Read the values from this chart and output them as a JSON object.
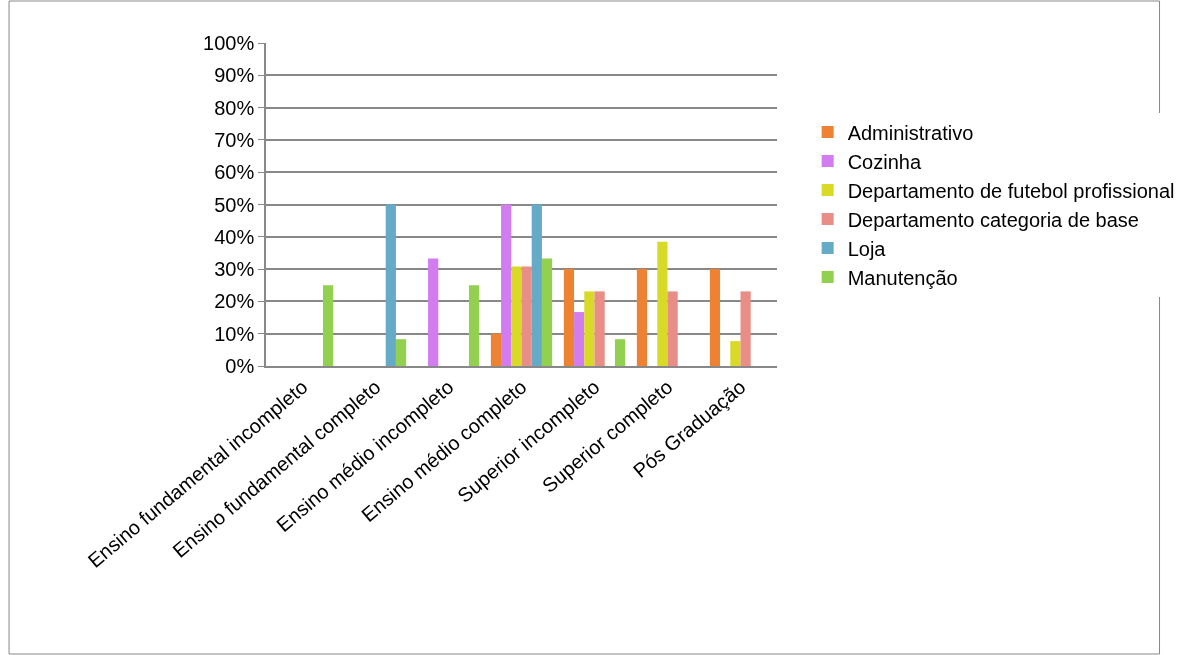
{
  "chart_data": {
    "type": "bar",
    "categories": [
      "Ensino fundamental incompleto",
      "Ensino fundamental completo",
      "Ensino médio incompleto",
      "Ensino médio completo",
      "Superior incompleto",
      "Superior completo",
      "Pós Graduação"
    ],
    "series": [
      {
        "name": "Administrativo",
        "color": "#ed8232",
        "values": [
          0,
          0,
          0,
          10,
          30,
          30,
          30
        ]
      },
      {
        "name": "Cozinha",
        "color": "#d27cf0",
        "values": [
          0,
          0,
          33.3,
          50,
          16.7,
          0,
          0
        ]
      },
      {
        "name": "Departamento de futebol profissional",
        "color": "#d9d927",
        "values": [
          0,
          0,
          0,
          30.8,
          23.1,
          38.5,
          7.7
        ]
      },
      {
        "name": "Departamento categoria de base",
        "color": "#e88e86",
        "values": [
          0,
          0,
          0,
          30.8,
          23.1,
          23.1,
          23.1
        ]
      },
      {
        "name": "Loja",
        "color": "#65abc7",
        "values": [
          0,
          50,
          0,
          50,
          0,
          0,
          0
        ]
      },
      {
        "name": "Manutenção",
        "color": "#92d050",
        "values": [
          25,
          8.3,
          25,
          33.3,
          8.3,
          0,
          0
        ]
      }
    ],
    "ylim": [
      0,
      100
    ],
    "yticks": [
      {
        "value": 0,
        "label": "0%"
      },
      {
        "value": 10,
        "label": "10%"
      },
      {
        "value": 20,
        "label": "20%"
      },
      {
        "value": 30,
        "label": "30%"
      },
      {
        "value": 40,
        "label": "40%"
      },
      {
        "value": 50,
        "label": "50%"
      },
      {
        "value": 60,
        "label": "60%"
      },
      {
        "value": 70,
        "label": "70%"
      },
      {
        "value": 80,
        "label": "80%"
      },
      {
        "value": 90,
        "label": "90%"
      },
      {
        "value": 100,
        "label": "100%"
      }
    ],
    "grid": "y",
    "legend": "right"
  }
}
